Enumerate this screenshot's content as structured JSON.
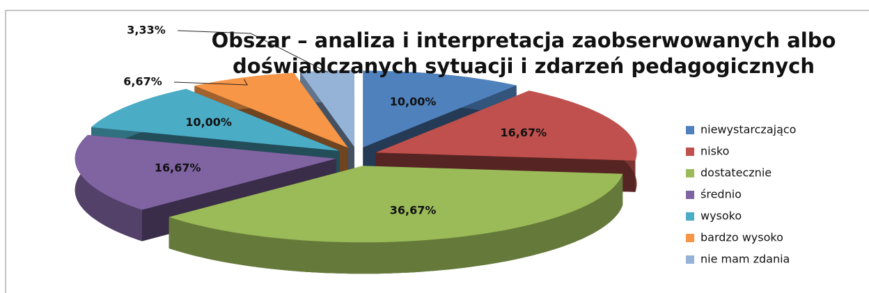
{
  "chart_data": {
    "type": "pie",
    "title": "Obszar – analiza i interpretacja zaobserwowanych albo doświadczanych sytuacji i zdarzeń pedagogicznych",
    "categories": [
      "niewystarczająco",
      "nisko",
      "dostatecznie",
      "średnio",
      "wysoko",
      "bardzo wysoko",
      "nie mam zdania"
    ],
    "values": [
      10,
      16.67,
      36.67,
      16.67,
      10,
      6.67,
      3.33
    ],
    "value_labels": [
      "10,00%",
      "16,67%",
      "36,67%",
      "16,67%",
      "10,00%",
      "6,67%",
      "3,33%"
    ],
    "colors": [
      "#4f81bd",
      "#c0504d",
      "#9bbb59",
      "#8064a2",
      "#4bacc6",
      "#f79646",
      "#95b3d7"
    ],
    "legend": "right"
  }
}
